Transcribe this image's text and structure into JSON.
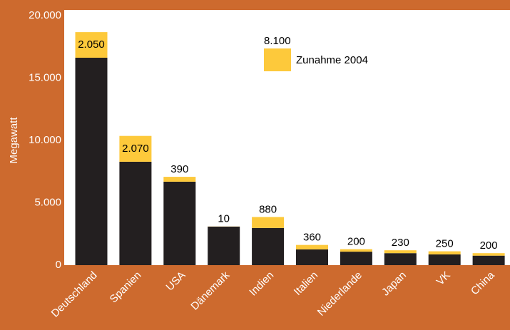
{
  "chart_data": {
    "type": "bar",
    "stacked": true,
    "y_label": "Megawatt",
    "annotation": "8.100",
    "categories": [
      "Deutschland",
      "Spanien",
      "USA",
      "Dänemark",
      "Indien",
      "Italien",
      "Niederlande",
      "Japan",
      "VK",
      "China"
    ],
    "series": [
      {
        "color": "#231f20",
        "values": [
          16630,
          8290,
          6690,
          3090,
          2980,
          1260,
          1080,
          960,
          860,
          760
        ]
      },
      {
        "name": "Zunahme 2004",
        "color": "#fdc93b",
        "values": [
          2050,
          2070,
          390,
          10,
          880,
          360,
          200,
          230,
          250,
          200
        ],
        "value_labels": [
          "2.050",
          "2.070",
          "390",
          "10",
          "880",
          "360",
          "200",
          "230",
          "250",
          "200"
        ]
      }
    ],
    "ylim": [
      0,
      20000
    ],
    "yticks": [
      0,
      {
        "value": 5000,
        "label": "5.000"
      },
      {
        "value": 10000,
        "label": "10.000"
      },
      {
        "value": 15000,
        "label": "15.000"
      },
      {
        "value": 20000,
        "label": "20.000"
      }
    ],
    "grid": false
  }
}
